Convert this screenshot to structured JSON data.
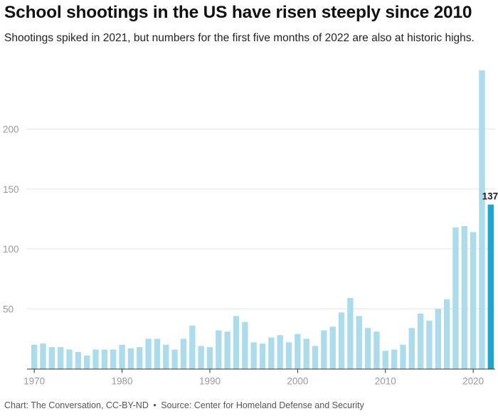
{
  "header": {
    "title": "School shootings in the US have risen steeply since 2010",
    "subtitle": "Shootings spiked in 2021, but numbers for the first five months of 2022 are also at historic highs."
  },
  "footer": {
    "chart_credit": "Chart: The Conversation, CC-BY-ND",
    "separator": "•",
    "source": "Source: Center for Homeland Defense and Security"
  },
  "colors": {
    "bar": "#acdcec",
    "highlight_bar": "#1da7cf",
    "grid": "#e3e3e3",
    "axis": "#333333",
    "tick_label": "#999999"
  },
  "chart_data": {
    "type": "bar",
    "title": "School shootings in the US have risen steeply since 2010",
    "subtitle": "Shootings spiked in 2021, but numbers for the first five months of 2022 are also at historic highs.",
    "xlabel": "",
    "ylabel": "",
    "ylim": [
      0,
      250
    ],
    "y_ticks": [
      50,
      100,
      150,
      200
    ],
    "x_ticks": [
      1970,
      1980,
      1990,
      2000,
      2010,
      2020
    ],
    "grid": true,
    "legend": "none",
    "highlight": {
      "x": 2022,
      "label": "137"
    },
    "x": [
      1970,
      1971,
      1972,
      1973,
      1974,
      1975,
      1976,
      1977,
      1978,
      1979,
      1980,
      1981,
      1982,
      1983,
      1984,
      1985,
      1986,
      1987,
      1988,
      1989,
      1990,
      1991,
      1992,
      1993,
      1994,
      1995,
      1996,
      1997,
      1998,
      1999,
      2000,
      2001,
      2002,
      2003,
      2004,
      2005,
      2006,
      2007,
      2008,
      2009,
      2010,
      2011,
      2012,
      2013,
      2014,
      2015,
      2016,
      2017,
      2018,
      2019,
      2020,
      2021,
      2022
    ],
    "values": [
      20,
      21,
      18,
      18,
      16,
      14,
      11,
      16,
      16,
      16,
      20,
      17,
      18,
      25,
      25,
      20,
      16,
      25,
      36,
      19,
      18,
      32,
      31,
      44,
      39,
      22,
      21,
      26,
      28,
      22,
      29,
      25,
      19,
      32,
      35,
      47,
      59,
      44,
      34,
      31,
      15,
      16,
      20,
      34,
      46,
      40,
      50,
      58,
      118,
      119,
      114,
      249,
      137
    ]
  }
}
